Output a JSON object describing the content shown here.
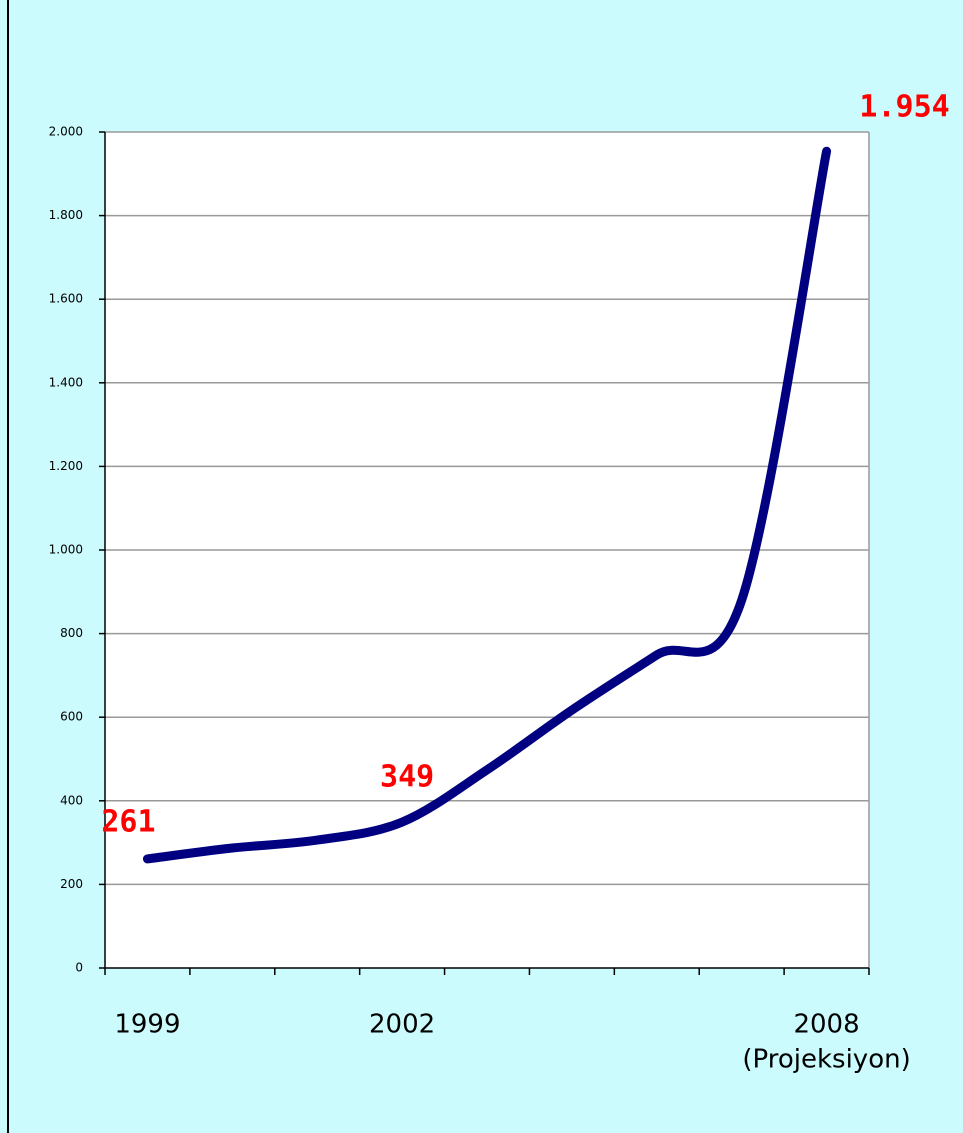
{
  "chart_data": {
    "type": "line",
    "categories": [
      "1999",
      null,
      null,
      "2002",
      null,
      null,
      null,
      null,
      "2008"
    ],
    "x_note": "(Projeksiyon)",
    "values": [
      261,
      287,
      306,
      349,
      474,
      617,
      749,
      880,
      1954
    ],
    "value_labels": [
      "261",
      null,
      null,
      "349",
      null,
      null,
      null,
      null,
      "1.954"
    ],
    "color": "#000080",
    "ylim": [
      0,
      2000
    ],
    "yticks": [
      0,
      200,
      400,
      600,
      800,
      {
        "value": 1000,
        "label": "1.000"
      },
      {
        "value": 1200,
        "label": "1.200"
      },
      {
        "value": 1400,
        "label": "1.400"
      },
      {
        "value": 1600,
        "label": "1.600"
      },
      {
        "value": 1800,
        "label": "1.800"
      },
      {
        "value": 2000,
        "label": "2.000"
      }
    ],
    "grid": true
  }
}
